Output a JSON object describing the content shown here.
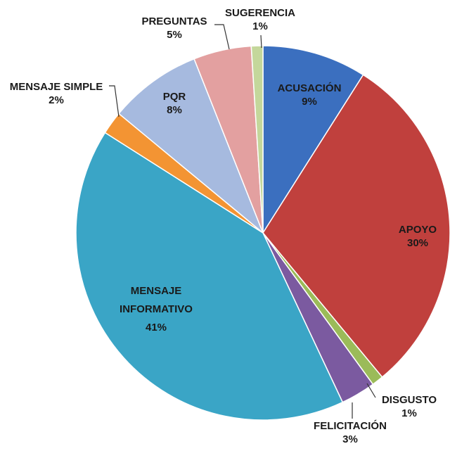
{
  "chart_data": {
    "type": "pie",
    "categories": [
      "ACUSACIÓN",
      "APOYO",
      "DISGUSTO",
      "FELICITACIÓN",
      "MENSAJE INFORMATIVO",
      "MENSAJE SIMPLE",
      "PQR",
      "PREGUNTAS",
      "SUGERENCIA"
    ],
    "values": [
      9,
      30,
      1,
      3,
      41,
      2,
      8,
      5,
      1
    ],
    "value_labels": [
      "9%",
      "30%",
      "1%",
      "3%",
      "41%",
      "2%",
      "8%",
      "5%",
      "1%"
    ],
    "colors": [
      "#3b6fbf",
      "#c0403d",
      "#9bbb59",
      "#7b5aa0",
      "#3aa5c6",
      "#f39433",
      "#a6badf",
      "#e3a0a0",
      "#c4d79b"
    ]
  }
}
